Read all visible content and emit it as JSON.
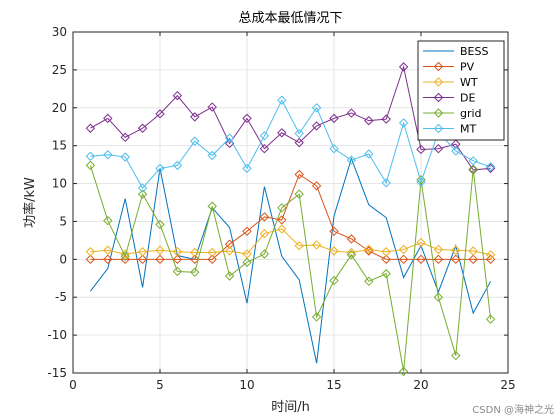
{
  "chart_data": {
    "type": "line",
    "title": "总成本最低情况下",
    "xlabel": "时间/h",
    "ylabel": "功率/kW",
    "xlim": [
      0,
      25
    ],
    "ylim": [
      -15,
      30
    ],
    "xticks": [
      0,
      5,
      10,
      15,
      20,
      25
    ],
    "yticks": [
      -15,
      -10,
      -5,
      0,
      5,
      10,
      15,
      20,
      25,
      30
    ],
    "grid": true,
    "legend_position": "top-right",
    "x": [
      1,
      2,
      3,
      4,
      5,
      6,
      7,
      8,
      9,
      10,
      11,
      12,
      13,
      14,
      15,
      16,
      17,
      18,
      19,
      20,
      21,
      22,
      23,
      24
    ],
    "series": [
      {
        "name": "BESS",
        "color": "#0072BD",
        "marker": "none",
        "values": [
          -4.2,
          -1.2,
          8.0,
          -3.7,
          12.0,
          0.5,
          0.0,
          6.8,
          4.2,
          -5.8,
          9.6,
          0.4,
          -2.7,
          -13.7,
          5.7,
          13.3,
          7.2,
          5.5,
          -2.4,
          1.8,
          -4.3,
          1.8,
          -7.1,
          -2.9
        ]
      },
      {
        "name": "PV",
        "color": "#D95319",
        "marker": "diamond",
        "values": [
          0.0,
          0.0,
          0.0,
          0.0,
          0.0,
          0.0,
          0.0,
          0.0,
          2.0,
          3.7,
          5.6,
          5.2,
          11.2,
          9.7,
          3.7,
          2.7,
          1.1,
          0.0,
          0.0,
          0.0,
          0.0,
          0.0,
          0.0,
          0.0
        ]
      },
      {
        "name": "WT",
        "color": "#EDB120",
        "marker": "diamond",
        "values": [
          1.0,
          1.2,
          0.7,
          1.0,
          1.2,
          1.0,
          0.9,
          0.9,
          1.1,
          0.7,
          3.4,
          4.0,
          1.8,
          1.9,
          1.1,
          0.9,
          1.3,
          1.0,
          1.3,
          2.2,
          1.3,
          1.2,
          1.1,
          0.6
        ]
      },
      {
        "name": "DE",
        "color": "#7E2F8E",
        "marker": "diamond",
        "values": [
          17.3,
          18.6,
          16.1,
          17.3,
          19.2,
          21.6,
          18.8,
          20.1,
          15.3,
          18.6,
          14.6,
          16.7,
          15.4,
          17.6,
          18.6,
          19.3,
          18.3,
          18.5,
          25.4,
          14.5,
          14.6,
          15.2,
          11.8,
          12.0
        ]
      },
      {
        "name": "grid",
        "color": "#77AC30",
        "marker": "diamond",
        "values": [
          12.4,
          5.1,
          0.4,
          8.6,
          4.6,
          -1.6,
          -1.7,
          7.0,
          -2.2,
          -0.4,
          0.7,
          6.8,
          8.6,
          -7.6,
          -2.8,
          0.6,
          -2.9,
          -1.9,
          -14.8,
          10.5,
          -5.0,
          -12.7,
          11.9,
          -7.9
        ]
      },
      {
        "name": "MT",
        "color": "#4DBEEE",
        "marker": "diamond",
        "values": [
          13.6,
          13.8,
          13.5,
          9.4,
          12.0,
          12.4,
          15.6,
          13.7,
          16.0,
          12.0,
          16.3,
          21.0,
          16.6,
          20.0,
          14.6,
          13.1,
          13.9,
          10.1,
          18.0,
          10.2,
          16.8,
          14.3,
          13.0,
          12.2
        ]
      }
    ]
  },
  "watermark": "CSDN @海神之光"
}
